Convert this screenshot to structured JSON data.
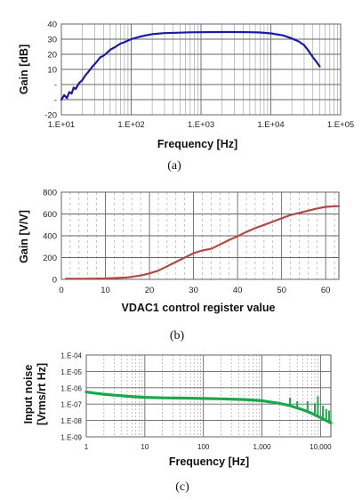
{
  "chart_data": [
    {
      "type": "line",
      "caption": "(a)",
      "xlabel": "Frequency [Hz]",
      "ylabel": "Gain [dB]",
      "x_scale": "log",
      "xlim": [
        10,
        100000
      ],
      "ylim": [
        -20,
        40
      ],
      "x_ticks": [
        10,
        100,
        1000,
        10000,
        100000
      ],
      "x_tick_labels": [
        "1.E+01",
        "1.E+02",
        "1.E+03",
        "1.E+04",
        "1.E+05"
      ],
      "y_ticks": [
        -20,
        -10,
        0,
        10,
        20,
        30,
        40
      ],
      "y_tick_labels": [
        "-20",
        "-",
        "-",
        "10",
        "20",
        "30",
        "40"
      ],
      "grid": true,
      "color": "#1a1aa6",
      "series": [
        {
          "x": [
            10,
            11,
            12,
            13,
            14,
            15,
            16,
            18,
            20,
            22,
            25,
            28,
            32,
            36,
            40,
            45,
            50,
            60,
            70,
            80,
            100,
            130,
            160,
            200,
            300,
            500,
            700,
            1000,
            2000,
            3000,
            5000,
            7000,
            10000,
            15000,
            20000,
            25000,
            30000,
            35000,
            40000,
            45000,
            50000
          ],
          "y": [
            -10,
            -7,
            -9,
            -5,
            -6,
            -2,
            -3,
            1,
            3,
            6,
            9,
            12,
            15,
            18,
            19,
            21,
            23,
            25,
            27,
            28,
            30,
            31.5,
            32.5,
            33.3,
            34,
            34.3,
            34.5,
            34.6,
            34.7,
            34.7,
            34.6,
            34.4,
            33.8,
            32.5,
            30.5,
            28.5,
            26,
            22,
            18,
            15,
            12
          ]
        }
      ]
    },
    {
      "type": "line",
      "caption": "(b)",
      "xlabel": "VDAC1 control register value",
      "ylabel": "Gain [V/V]",
      "xlim": [
        0,
        63
      ],
      "ylim": [
        0,
        800
      ],
      "x_ticks": [
        0,
        10,
        20,
        30,
        40,
        50,
        60
      ],
      "x_tick_labels": [
        "0",
        "10",
        "20",
        "30",
        "40",
        "50",
        "60"
      ],
      "y_ticks": [
        0,
        200,
        400,
        600,
        800
      ],
      "y_tick_labels": [
        "0",
        "200",
        "400",
        "600",
        "800"
      ],
      "grid": true,
      "color": "#b04a45",
      "series": [
        {
          "x": [
            1,
            5,
            10,
            15,
            18,
            20,
            22,
            24,
            26,
            28,
            30,
            32,
            34,
            36,
            38,
            40,
            42,
            44,
            46,
            48,
            50,
            52,
            54,
            56,
            58,
            60,
            62,
            63
          ],
          "y": [
            5,
            5,
            8,
            18,
            35,
            55,
            80,
            120,
            160,
            200,
            240,
            265,
            280,
            320,
            360,
            395,
            435,
            470,
            500,
            530,
            560,
            590,
            610,
            630,
            650,
            665,
            670,
            672
          ]
        }
      ]
    },
    {
      "type": "line",
      "caption": "(c)",
      "xlabel": "Frequency [Hz]",
      "ylabel": "Input noise [Vrms/rt Hz]",
      "ylabel_lines": [
        "Input noise",
        "[Vrms/rt Hz]"
      ],
      "x_scale": "log",
      "y_scale": "log",
      "xlim": [
        1,
        15000
      ],
      "ylim": [
        1e-09,
        0.0001
      ],
      "x_ticks": [
        1,
        10,
        100,
        1000,
        10000
      ],
      "x_tick_labels": [
        "1",
        "10",
        "100",
        "1,000",
        "10,000"
      ],
      "y_ticks": [
        1e-09,
        1e-08,
        1e-07,
        1e-06,
        1e-05,
        0.0001
      ],
      "y_tick_labels": [
        "1.E-09",
        "1.E-08",
        "1.E-07",
        "1.E-06",
        "1.E-05",
        "1.E-04"
      ],
      "grid": true,
      "color": "#1aa84a",
      "series": [
        {
          "x": [
            1,
            1.5,
            2,
            3,
            5,
            7,
            10,
            20,
            50,
            100,
            200,
            500,
            1000,
            2000,
            3000,
            5000,
            7000,
            10000,
            15000
          ],
          "y": [
            5.5e-07,
            4.5e-07,
            4e-07,
            3.5e-07,
            3e-07,
            2.8e-07,
            2.6e-07,
            2.4e-07,
            2.3e-07,
            2.2e-07,
            2.1e-07,
            1.9e-07,
            1.6e-07,
            1.1e-07,
            8e-08,
            4.5e-08,
            2.8e-08,
            1.5e-08,
            7e-09
          ]
        }
      ],
      "spurs": [
        {
          "x": 3000,
          "y": 2.5e-07
        },
        {
          "x": 4000,
          "y": 1.5e-07
        },
        {
          "x": 6000,
          "y": 1.5e-07
        },
        {
          "x": 8000,
          "y": 1.1e-07
        },
        {
          "x": 9000,
          "y": 3e-07
        },
        {
          "x": 11000,
          "y": 8e-08
        },
        {
          "x": 12500,
          "y": 5e-08
        },
        {
          "x": 14000,
          "y": 4e-08
        }
      ]
    }
  ]
}
